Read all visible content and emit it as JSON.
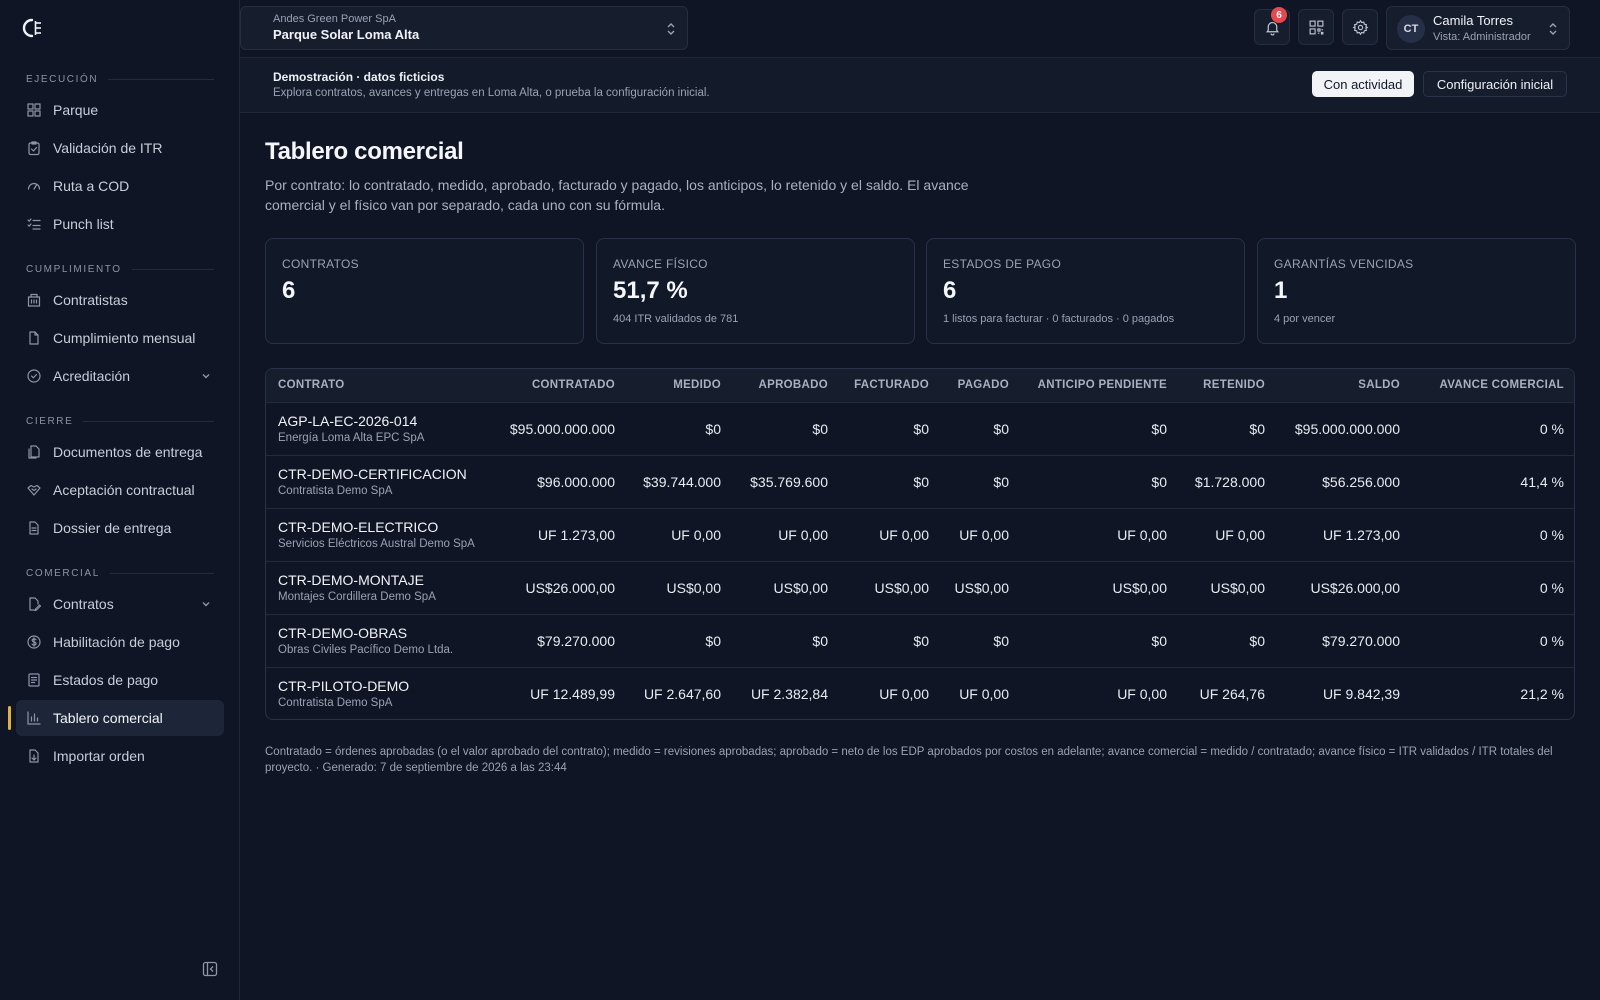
{
  "sidebar": {
    "sections": [
      {
        "label": "EJECUCIÓN",
        "items": [
          {
            "label": "Parque",
            "icon": "grid-icon"
          },
          {
            "label": "Validación de ITR",
            "icon": "clipboard-check-icon"
          },
          {
            "label": "Ruta a COD",
            "icon": "gauge-icon"
          },
          {
            "label": "Punch list",
            "icon": "list-check-icon"
          }
        ]
      },
      {
        "label": "CUMPLIMIENTO",
        "items": [
          {
            "label": "Contratistas",
            "icon": "building-icon"
          },
          {
            "label": "Cumplimiento mensual",
            "icon": "document-icon"
          },
          {
            "label": "Acreditación",
            "icon": "check-circle-icon",
            "expandable": true
          }
        ]
      },
      {
        "label": "CIERRE",
        "items": [
          {
            "label": "Documentos de entrega",
            "icon": "documents-icon"
          },
          {
            "label": "Aceptación contractual",
            "icon": "handshake-icon"
          },
          {
            "label": "Dossier de entrega",
            "icon": "file-text-icon"
          }
        ]
      },
      {
        "label": "COMERCIAL",
        "items": [
          {
            "label": "Contratos",
            "icon": "edit-document-icon",
            "expandable": true
          },
          {
            "label": "Habilitación de pago",
            "icon": "dollar-circle-icon"
          },
          {
            "label": "Estados de pago",
            "icon": "receipt-icon"
          },
          {
            "label": "Tablero comercial",
            "icon": "bar-chart-icon",
            "active": true
          },
          {
            "label": "Importar orden",
            "icon": "file-import-icon"
          }
        ]
      }
    ]
  },
  "header": {
    "org": "Andes Green Power SpA",
    "project": "Parque Solar Loma Alta",
    "notifications_count": "6",
    "user": {
      "initials": "CT",
      "name": "Camila Torres",
      "role": "Vista: Administrador"
    }
  },
  "banner": {
    "title": "Demostración · datos ficticios",
    "description": "Explora contratos, avances y entregas en Loma Alta, o prueba la configuración inicial.",
    "btn_activity": "Con actividad",
    "btn_setup": "Configuración inicial"
  },
  "main": {
    "title": "Tablero comercial",
    "description": "Por contrato: lo contratado, medido, aprobado, facturado y pagado, los anticipos, lo retenido y el saldo. El avance comercial y el físico van por separado, cada uno con su fórmula."
  },
  "kpis": [
    {
      "label": "CONTRATOS",
      "value": "6",
      "sub": ""
    },
    {
      "label": "AVANCE FÍSICO",
      "value": "51,7 %",
      "sub": "404 ITR validados de 781"
    },
    {
      "label": "ESTADOS DE PAGO",
      "value": "6",
      "sub": "1 listos para facturar · 0 facturados · 0 pagados"
    },
    {
      "label": "GARANTÍAS VENCIDAS",
      "value": "1",
      "sub": "4 por vencer"
    }
  ],
  "table": {
    "columns": [
      "CONTRATO",
      "CONTRATADO",
      "MEDIDO",
      "APROBADO",
      "FACTURADO",
      "PAGADO",
      "ANTICIPO PENDIENTE",
      "RETENIDO",
      "SALDO",
      "AVANCE COMERCIAL"
    ],
    "rows": [
      {
        "code": "AGP-LA-EC-2026-014",
        "company": "Energía Loma Alta EPC SpA",
        "cells": [
          "$95.000.000.000",
          "$0",
          "$0",
          "$0",
          "$0",
          "$0",
          "$0",
          "$95.000.000.000",
          "0 %"
        ]
      },
      {
        "code": "CTR-DEMO-CERTIFICACION",
        "company": "Contratista Demo SpA",
        "cells": [
          "$96.000.000",
          "$39.744.000",
          "$35.769.600",
          "$0",
          "$0",
          "$0",
          "$1.728.000",
          "$56.256.000",
          "41,4 %"
        ]
      },
      {
        "code": "CTR-DEMO-ELECTRICO",
        "company": "Servicios Eléctricos Austral Demo SpA",
        "cells": [
          "UF 1.273,00",
          "UF 0,00",
          "UF 0,00",
          "UF 0,00",
          "UF 0,00",
          "UF 0,00",
          "UF 0,00",
          "UF 1.273,00",
          "0 %"
        ]
      },
      {
        "code": "CTR-DEMO-MONTAJE",
        "company": "Montajes Cordillera Demo SpA",
        "cells": [
          "US$26.000,00",
          "US$0,00",
          "US$0,00",
          "US$0,00",
          "US$0,00",
          "US$0,00",
          "US$0,00",
          "US$26.000,00",
          "0 %"
        ]
      },
      {
        "code": "CTR-DEMO-OBRAS",
        "company": "Obras Civiles Pacífico Demo Ltda.",
        "cells": [
          "$79.270.000",
          "$0",
          "$0",
          "$0",
          "$0",
          "$0",
          "$0",
          "$79.270.000",
          "0 %"
        ]
      },
      {
        "code": "CTR-PILOTO-DEMO",
        "company": "Contratista Demo SpA",
        "cells": [
          "UF 12.489,99",
          "UF 2.647,60",
          "UF 2.382,84",
          "UF 0,00",
          "UF 0,00",
          "UF 0,00",
          "UF 264,76",
          "UF 9.842,39",
          "21,2 %"
        ]
      }
    ]
  },
  "footnote": "Contratado = órdenes aprobadas (o el valor aprobado del contrato); medido = revisiones aprobadas; aprobado = neto de los EDP aprobados por costos en adelante; avance comercial = medido / contratado; avance físico = ITR validados / ITR totales del proyecto. · Generado: 7 de septiembre de 2026 a las 23:44",
  "colors": {
    "accent": "#e2b13c",
    "badge": "#e5484d",
    "background": "#0f1524"
  }
}
